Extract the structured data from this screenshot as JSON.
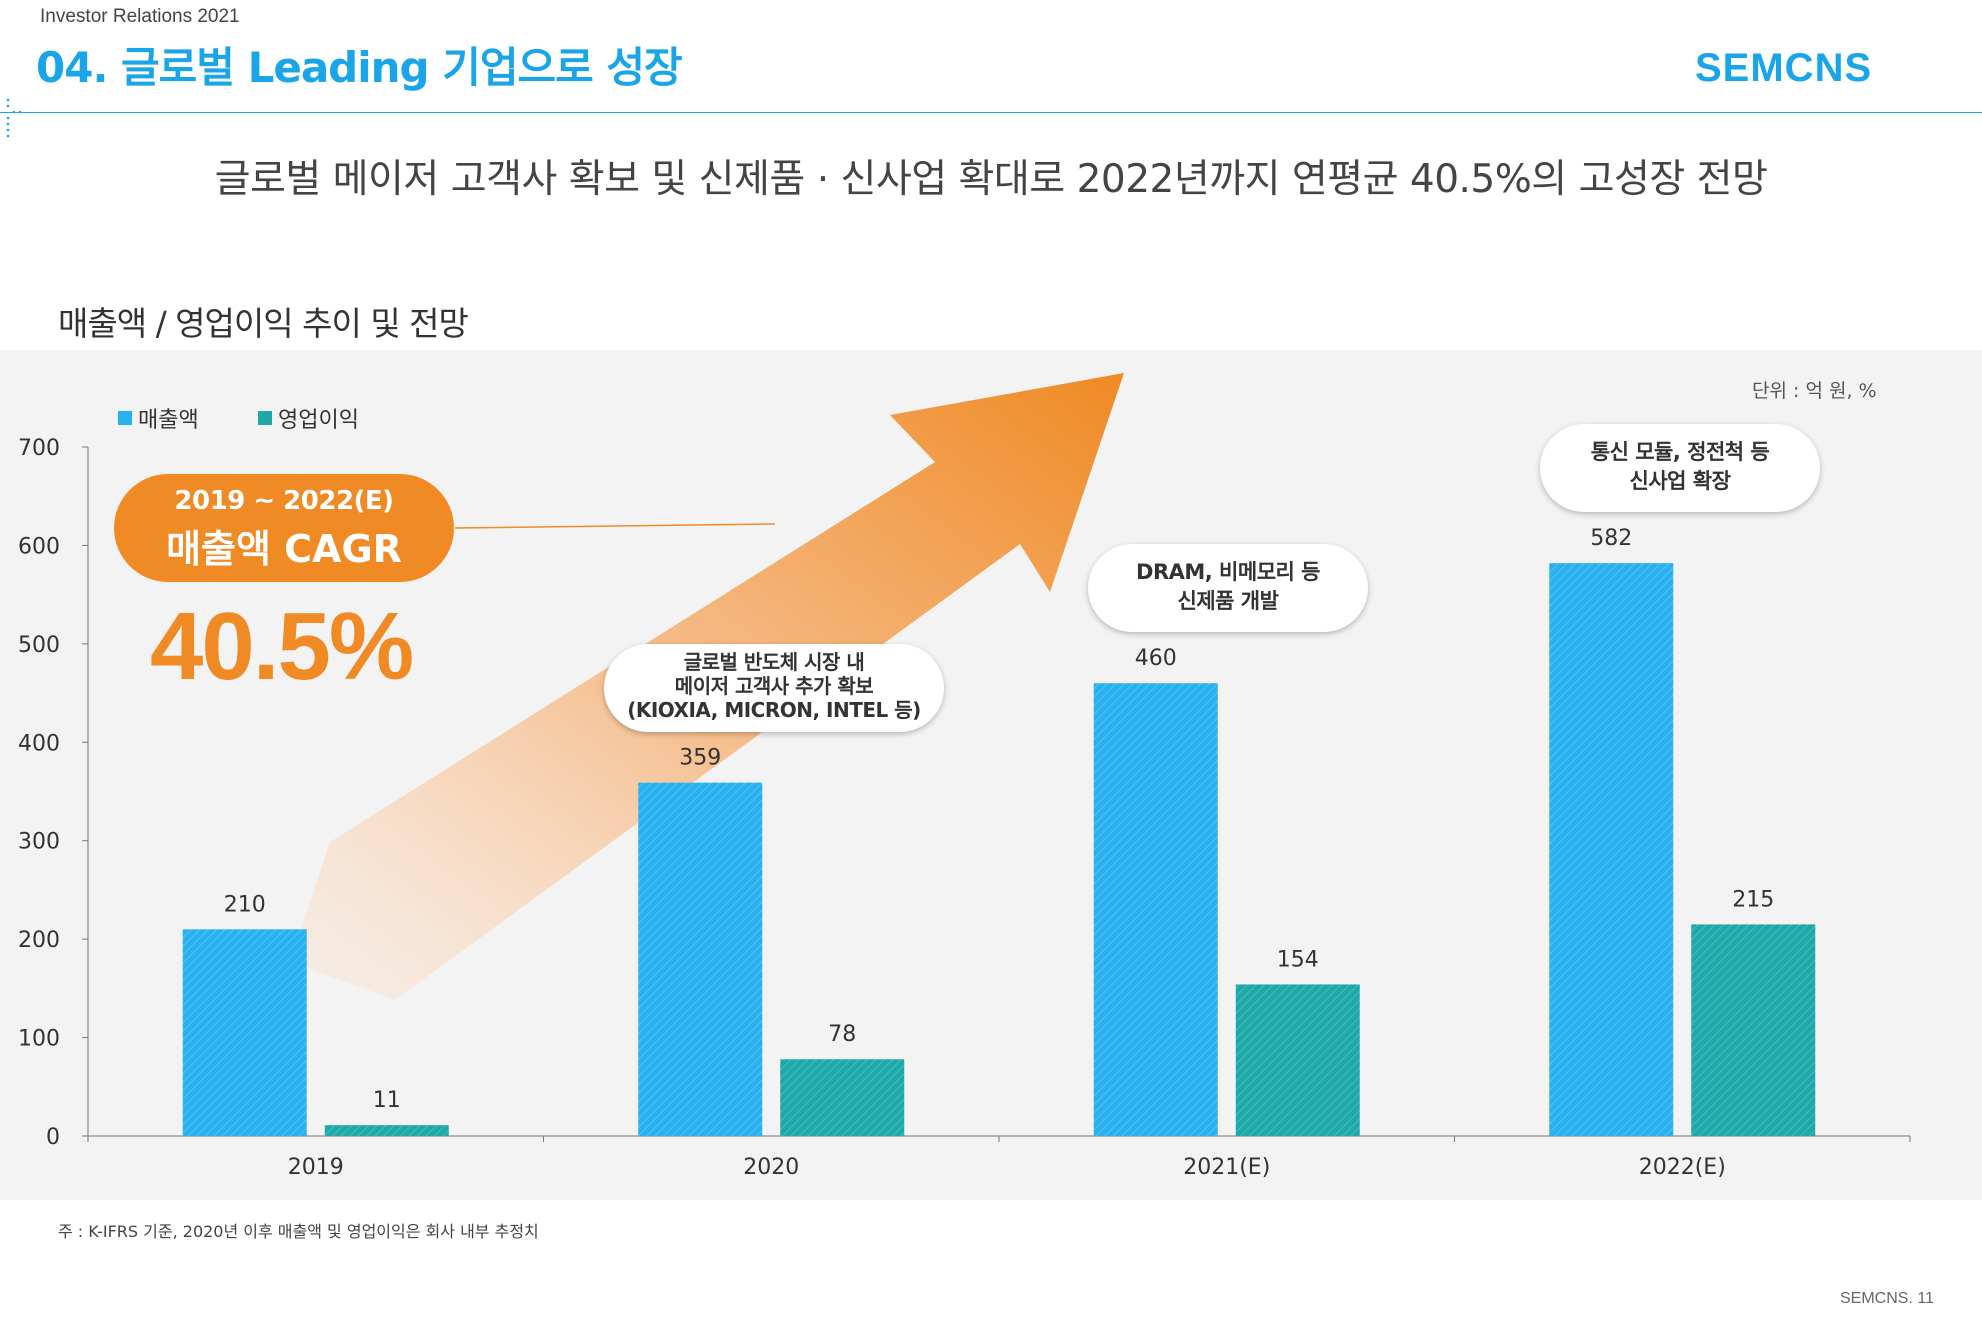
{
  "header": {
    "subtitle": "Investor Relations 2021",
    "title": "04. 글로벌 Leading 기업으로 성장",
    "logo": "SEMCNS"
  },
  "headline": "글로벌 메이저 고객사 확보 및 신제품 · 신사업 확대로 2022년까지 연평균 40.5%의 고성장 전망",
  "chart_title": "매출액 / 영업이익 추이 및 전망",
  "unit": "단위 : 억 원, %",
  "cagr": {
    "period": "2019 ~ 2022(E)",
    "label": "매출액 CAGR",
    "value": "40.5%"
  },
  "callouts": [
    {
      "lines": [
        "글로벌 반도체 시장 내",
        "메이저 고객사 추가 확보",
        "(KIOXIA, MICRON, INTEL 등)"
      ]
    },
    {
      "lines": [
        "DRAM, 비메모리 등",
        "신제품 개발"
      ]
    },
    {
      "lines": [
        "통신 모듈, 정전척 등",
        "신사업 확장"
      ]
    }
  ],
  "footnote": "주 : K-IFRS 기준, 2020년 이후 매출액 및 영업이익은 회사 내부 추정치",
  "page_footer": "SEMCNS.  11",
  "colors": {
    "accent": "#1aa5e8",
    "revenue": "#29b0ef",
    "op_income": "#1fa8a8",
    "orange": "#ef8a24"
  },
  "chart_data": {
    "type": "bar",
    "categories": [
      "2019",
      "2020",
      "2021(E)",
      "2022(E)"
    ],
    "series": [
      {
        "name": "매출액",
        "values": [
          210,
          359,
          460,
          582
        ]
      },
      {
        "name": "영업이익",
        "values": [
          11,
          78,
          154,
          215
        ]
      }
    ],
    "ylim": [
      0,
      700
    ],
    "yticks": [
      0,
      100,
      200,
      300,
      400,
      500,
      600,
      700
    ],
    "title": "매출액 / 영업이익 추이 및 전망",
    "xlabel": "",
    "ylabel": "",
    "legend": "top-left"
  }
}
